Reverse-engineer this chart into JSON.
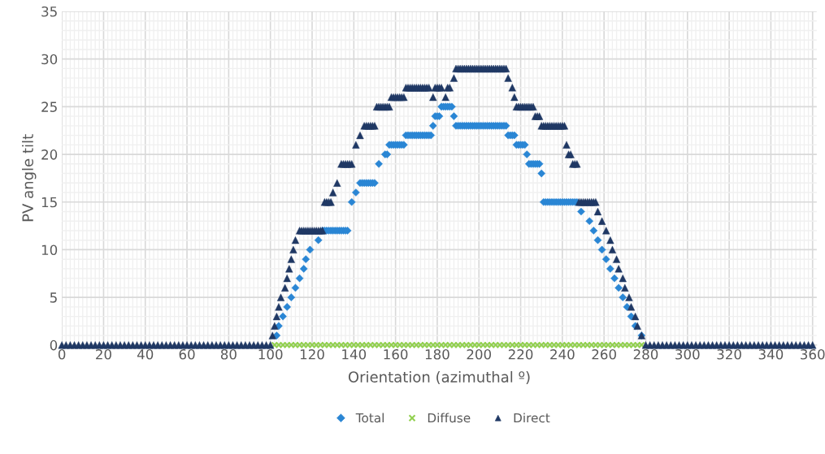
{
  "chart_data": {
    "type": "scatter",
    "xlabel": "Orientation (azimuthal º)",
    "ylabel": "PV angle tilt",
    "xlim": [
      0,
      362
    ],
    "ylim": [
      0,
      35
    ],
    "xticks": [
      0,
      20,
      40,
      60,
      80,
      100,
      120,
      140,
      160,
      180,
      200,
      220,
      240,
      260,
      280,
      300,
      320,
      340,
      360
    ],
    "yticks": [
      0,
      5,
      10,
      15,
      20,
      25,
      30,
      35
    ],
    "grid": true,
    "legend": "bottom",
    "series": [
      {
        "name": "Total",
        "color": "#2a86d4",
        "marker": "diamond",
        "x": [
          103,
          104,
          106,
          108,
          110,
          112,
          114,
          116,
          117,
          119,
          123,
          125,
          126,
          127,
          128,
          129,
          130,
          131,
          132,
          133,
          134,
          135,
          136,
          137,
          139,
          141,
          143,
          144,
          145,
          146,
          147,
          148,
          149,
          150,
          152,
          155,
          156,
          157,
          158,
          159,
          160,
          161,
          162,
          163,
          164,
          165,
          166,
          167,
          168,
          169,
          170,
          171,
          172,
          173,
          174,
          175,
          176,
          177,
          178,
          179,
          180,
          181,
          182,
          183,
          184,
          185,
          186,
          187,
          188,
          189,
          190,
          191,
          192,
          193,
          194,
          195,
          196,
          197,
          198,
          199,
          200,
          201,
          202,
          203,
          204,
          205,
          206,
          207,
          208,
          209,
          210,
          211,
          212,
          213,
          214,
          215,
          216,
          217,
          218,
          219,
          220,
          221,
          222,
          223,
          224,
          225,
          226,
          227,
          228,
          229,
          230,
          231,
          232,
          233,
          234,
          235,
          236,
          237,
          238,
          239,
          240,
          241,
          242,
          243,
          244,
          245,
          246,
          247,
          249,
          253,
          255,
          257,
          259,
          261,
          263,
          265,
          267,
          269,
          271,
          273,
          275,
          278
        ],
        "values": [
          1,
          2,
          3,
          4,
          5,
          6,
          7,
          8,
          9,
          10,
          11,
          12,
          12,
          12,
          12,
          12,
          12,
          12,
          12,
          12,
          12,
          12,
          12,
          12,
          15,
          16,
          17,
          17,
          17,
          17,
          17,
          17,
          17,
          17,
          19,
          20,
          20,
          21,
          21,
          21,
          21,
          21,
          21,
          21,
          21,
          22,
          22,
          22,
          22,
          22,
          22,
          22,
          22,
          22,
          22,
          22,
          22,
          22,
          23,
          24,
          24,
          24,
          25,
          25,
          25,
          25,
          25,
          25,
          24,
          23,
          23,
          23,
          23,
          23,
          23,
          23,
          23,
          23,
          23,
          23,
          23,
          23,
          23,
          23,
          23,
          23,
          23,
          23,
          23,
          23,
          23,
          23,
          23,
          23,
          22,
          22,
          22,
          22,
          21,
          21,
          21,
          21,
          21,
          20,
          19,
          19,
          19,
          19,
          19,
          19,
          18,
          15,
          15,
          15,
          15,
          15,
          15,
          15,
          15,
          15,
          15,
          15,
          15,
          15,
          15,
          15,
          15,
          15,
          14,
          13,
          12,
          11,
          10,
          9,
          8,
          7,
          6,
          5,
          4,
          3,
          2,
          1
        ]
      },
      {
        "name": "Diffuse",
        "color": "#92d050",
        "marker": "cross",
        "x": [
          102,
          104,
          106,
          108,
          110,
          112,
          114,
          116,
          118,
          120,
          122,
          124,
          126,
          128,
          130,
          132,
          134,
          136,
          138,
          140,
          142,
          144,
          146,
          148,
          150,
          152,
          154,
          156,
          158,
          160,
          162,
          164,
          166,
          168,
          170,
          172,
          174,
          176,
          178,
          180,
          182,
          184,
          186,
          188,
          190,
          192,
          194,
          196,
          198,
          200,
          202,
          204,
          206,
          208,
          210,
          212,
          214,
          216,
          218,
          220,
          222,
          224,
          226,
          228,
          230,
          232,
          234,
          236,
          238,
          240,
          242,
          244,
          246,
          248,
          250,
          252,
          254,
          256,
          258,
          260,
          262,
          264,
          266,
          268,
          270,
          272,
          274,
          276,
          278
        ],
        "values": [
          0,
          0,
          0,
          0,
          0,
          0,
          0,
          0,
          0,
          0,
          0,
          0,
          0,
          0,
          0,
          0,
          0,
          0,
          0,
          0,
          0,
          0,
          0,
          0,
          0,
          0,
          0,
          0,
          0,
          0,
          0,
          0,
          0,
          0,
          0,
          0,
          0,
          0,
          0,
          0,
          0,
          0,
          0,
          0,
          0,
          0,
          0,
          0,
          0,
          0,
          0,
          0,
          0,
          0,
          0,
          0,
          0,
          0,
          0,
          0,
          0,
          0,
          0,
          0,
          0,
          0,
          0,
          0,
          0,
          0,
          0,
          0,
          0,
          0,
          0,
          0,
          0,
          0,
          0,
          0,
          0,
          0,
          0,
          0,
          0,
          0,
          0,
          0,
          0
        ]
      },
      {
        "name": "Direct",
        "color": "#1f3864",
        "marker": "triangle",
        "x": [
          0,
          2,
          4,
          6,
          8,
          10,
          12,
          14,
          16,
          18,
          20,
          22,
          24,
          26,
          28,
          30,
          32,
          34,
          36,
          38,
          40,
          42,
          44,
          46,
          48,
          50,
          52,
          54,
          56,
          58,
          60,
          62,
          64,
          66,
          68,
          70,
          72,
          74,
          76,
          78,
          80,
          82,
          84,
          86,
          88,
          90,
          92,
          94,
          96,
          98,
          100,
          101,
          102,
          103,
          104,
          105,
          107,
          108,
          109,
          110,
          111,
          112,
          114,
          115,
          116,
          117,
          118,
          119,
          120,
          121,
          122,
          123,
          124,
          125,
          126,
          127,
          128,
          129,
          130,
          132,
          134,
          135,
          136,
          137,
          138,
          139,
          141,
          143,
          145,
          146,
          147,
          148,
          149,
          150,
          151,
          152,
          153,
          154,
          155,
          156,
          157,
          158,
          159,
          160,
          161,
          162,
          163,
          164,
          165,
          166,
          167,
          168,
          169,
          170,
          171,
          172,
          173,
          174,
          175,
          176,
          178,
          179,
          180,
          181,
          182,
          184,
          185,
          186,
          188,
          189,
          190,
          191,
          192,
          193,
          194,
          195,
          196,
          197,
          198,
          199,
          200,
          201,
          202,
          203,
          204,
          205,
          206,
          207,
          208,
          209,
          210,
          211,
          212,
          213,
          214,
          216,
          217,
          218,
          219,
          220,
          221,
          222,
          223,
          224,
          225,
          226,
          227,
          228,
          229,
          230,
          231,
          232,
          233,
          234,
          235,
          236,
          237,
          238,
          239,
          240,
          241,
          242,
          243,
          244,
          245,
          246,
          247,
          248,
          249,
          250,
          251,
          252,
          253,
          254,
          255,
          256,
          257,
          259,
          261,
          263,
          264,
          266,
          267,
          269,
          270,
          272,
          273,
          275,
          276,
          278,
          280,
          282,
          284,
          286,
          288,
          290,
          292,
          294,
          296,
          298,
          300,
          302,
          304,
          306,
          308,
          310,
          312,
          314,
          316,
          318,
          320,
          322,
          324,
          326,
          328,
          330,
          332,
          334,
          336,
          338,
          340,
          342,
          344,
          346,
          348,
          350,
          352,
          354,
          356,
          358,
          360
        ],
        "values": [
          0,
          0,
          0,
          0,
          0,
          0,
          0,
          0,
          0,
          0,
          0,
          0,
          0,
          0,
          0,
          0,
          0,
          0,
          0,
          0,
          0,
          0,
          0,
          0,
          0,
          0,
          0,
          0,
          0,
          0,
          0,
          0,
          0,
          0,
          0,
          0,
          0,
          0,
          0,
          0,
          0,
          0,
          0,
          0,
          0,
          0,
          0,
          0,
          0,
          0,
          0,
          1,
          2,
          3,
          4,
          5,
          6,
          7,
          8,
          9,
          10,
          11,
          12,
          12,
          12,
          12,
          12,
          12,
          12,
          12,
          12,
          12,
          12,
          12,
          15,
          15,
          15,
          15,
          16,
          17,
          19,
          19,
          19,
          19,
          19,
          19,
          21,
          22,
          23,
          23,
          23,
          23,
          23,
          23,
          25,
          25,
          25,
          25,
          25,
          25,
          25,
          26,
          26,
          26,
          26,
          26,
          26,
          26,
          27,
          27,
          27,
          27,
          27,
          27,
          27,
          27,
          27,
          27,
          27,
          27,
          26,
          27,
          27,
          27,
          27,
          26,
          27,
          27,
          28,
          29,
          29,
          29,
          29,
          29,
          29,
          29,
          29,
          29,
          29,
          29,
          29,
          29,
          29,
          29,
          29,
          29,
          29,
          29,
          29,
          29,
          29,
          29,
          29,
          29,
          28,
          27,
          26,
          25,
          25,
          25,
          25,
          25,
          25,
          25,
          25,
          25,
          24,
          24,
          24,
          23,
          23,
          23,
          23,
          23,
          23,
          23,
          23,
          23,
          23,
          23,
          23,
          21,
          20,
          20,
          19,
          19,
          19,
          15,
          15,
          15,
          15,
          15,
          15,
          15,
          15,
          15,
          14,
          13,
          12,
          11,
          10,
          9,
          8,
          7,
          6,
          5,
          4,
          3,
          2,
          1,
          0,
          0,
          0,
          0,
          0,
          0,
          0,
          0,
          0,
          0,
          0,
          0,
          0,
          0,
          0,
          0,
          0,
          0,
          0,
          0,
          0,
          0,
          0,
          0,
          0,
          0,
          0,
          0,
          0,
          0,
          0,
          0,
          0,
          0,
          0,
          0,
          0,
          0,
          0,
          0,
          0
        ]
      }
    ]
  }
}
